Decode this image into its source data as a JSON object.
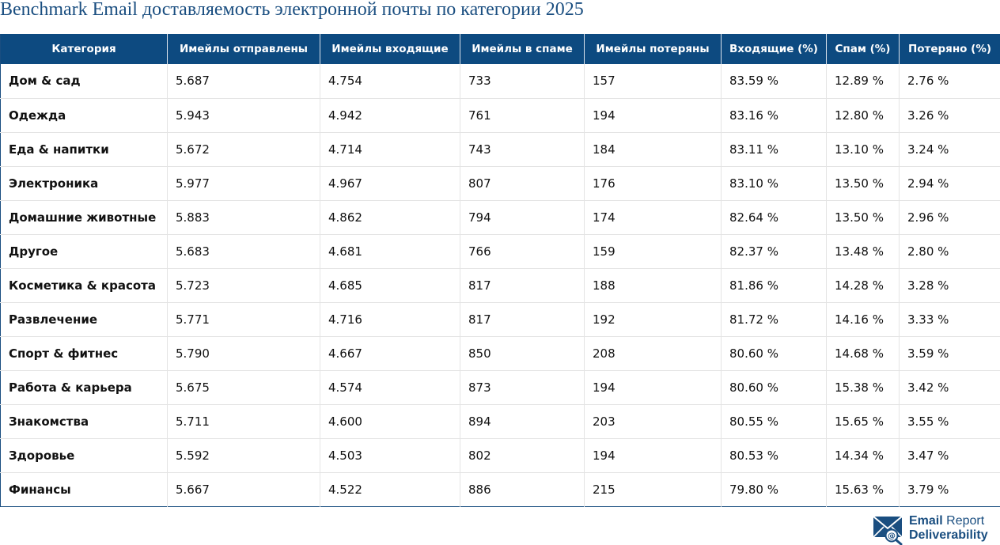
{
  "title": "Benchmark Email доставляемость электронной почты по категории 2025",
  "table": {
    "headers": [
      "Категория",
      "Имейлы отправлены",
      "Имейлы входящие",
      "Имейлы в спаме",
      "Имейлы потеряны",
      "Входящие (%)",
      "Спам (%)",
      "Потеряно (%)"
    ],
    "rows": [
      [
        "Дом & сад",
        "5.687",
        "4.754",
        "733",
        "157",
        "83.59 %",
        "12.89 %",
        "2.76 %"
      ],
      [
        "Одежда",
        "5.943",
        "4.942",
        "761",
        "194",
        "83.16 %",
        "12.80 %",
        "3.26 %"
      ],
      [
        "Еда & напитки",
        "5.672",
        "4.714",
        "743",
        "184",
        "83.11 %",
        "13.10 %",
        "3.24 %"
      ],
      [
        "Электроника",
        "5.977",
        "4.967",
        "807",
        "176",
        "83.10 %",
        "13.50 %",
        "2.94 %"
      ],
      [
        "Домашние животные",
        "5.883",
        "4.862",
        "794",
        "174",
        "82.64 %",
        "13.50 %",
        "2.96 %"
      ],
      [
        "Другое",
        "5.683",
        "4.681",
        "766",
        "159",
        "82.37 %",
        "13.48 %",
        "2.80 %"
      ],
      [
        "Косметика & красота",
        "5.723",
        "4.685",
        "817",
        "188",
        "81.86 %",
        "14.28 %",
        "3.28 %"
      ],
      [
        "Развлечение",
        "5.771",
        "4.716",
        "817",
        "192",
        "81.72 %",
        "14.16 %",
        "3.33 %"
      ],
      [
        "Спорт & фитнес",
        "5.790",
        "4.667",
        "850",
        "208",
        "80.60 %",
        "14.68 %",
        "3.59 %"
      ],
      [
        "Работа & карьера",
        "5.675",
        "4.574",
        "873",
        "194",
        "80.60 %",
        "15.38 %",
        "3.42 %"
      ],
      [
        "Знакомства",
        "5.711",
        "4.600",
        "894",
        "203",
        "80.55 %",
        "15.65 %",
        "3.55 %"
      ],
      [
        "Здоровье",
        "5.592",
        "4.503",
        "802",
        "194",
        "80.53 %",
        "14.34 %",
        "3.47 %"
      ],
      [
        "Финансы",
        "5.667",
        "4.522",
        "886",
        "215",
        "79.80 %",
        "15.63 %",
        "3.79 %"
      ]
    ]
  },
  "logo": {
    "icon": "envelope-at-magnifier-icon",
    "word1": "Email",
    "word2": "Report",
    "word3": "Deliverability"
  },
  "colors": {
    "header_bg": "#0d4a80",
    "brand": "#1a4e80"
  }
}
